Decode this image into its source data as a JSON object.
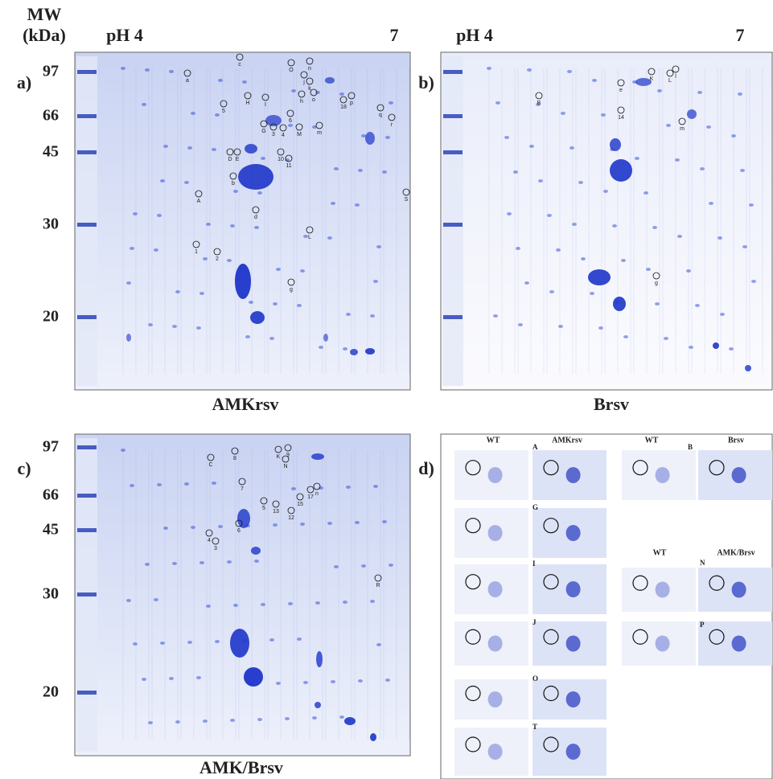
{
  "header": {
    "mw": "MW",
    "unit": "(kDa)"
  },
  "panels": [
    {
      "label": "a)",
      "ph_start": "pH 4",
      "ph_end": "7",
      "gel_name": "AMKrsv",
      "mw_labels": [
        "97",
        "66",
        "45",
        "30",
        "20"
      ],
      "spots": [
        "a",
        "c",
        "O",
        "n",
        "j",
        "k",
        "H",
        "I",
        "5",
        "h",
        "o",
        "18",
        "p",
        "q",
        "r",
        "6",
        "G",
        "3",
        "4",
        "M",
        "m",
        "D",
        "E",
        "10",
        "11",
        "b",
        "A",
        "d",
        "L",
        "S",
        "1",
        "2",
        "g"
      ]
    },
    {
      "label": "b)",
      "ph_start": "pH 4",
      "ph_end": "7",
      "gel_name": "Brsv",
      "spots": [
        "B",
        "e",
        "K",
        "L",
        "l",
        "14",
        "m",
        "g"
      ]
    },
    {
      "label": "c)",
      "gel_name": "AMK/Brsv",
      "mw_labels": [
        "97",
        "66",
        "45",
        "30",
        "20"
      ],
      "spots": [
        "C",
        "8",
        "K",
        "9",
        "N",
        "7",
        "n",
        "17",
        "15",
        "12",
        "5",
        "13",
        "6",
        "4",
        "3",
        "R"
      ]
    },
    {
      "label": "d)",
      "headings": [
        "WT",
        "AMKrsv",
        "WT",
        "Brsv",
        "WT",
        "AMK/Brsv"
      ],
      "letters": [
        "A",
        "B",
        "G",
        "I",
        "J",
        "O",
        "T",
        "N",
        "P"
      ]
    }
  ]
}
